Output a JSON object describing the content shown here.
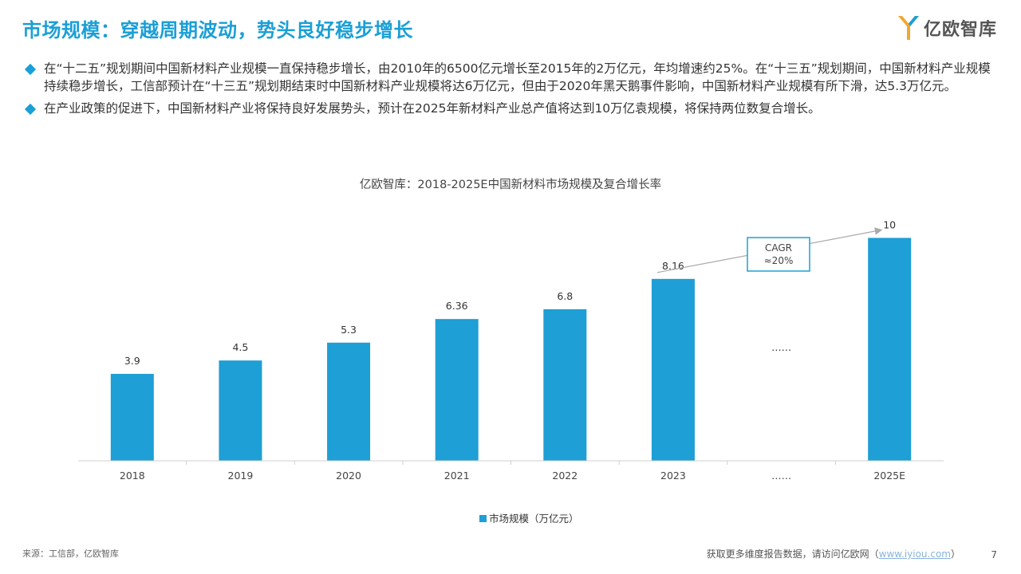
{
  "page": {
    "title": "市场规模：穿越周期波动，势头良好稳步增长",
    "logo_text": "亿欧智库",
    "bullets": [
      "在“十二五”规划期间中国新材料产业规模一直保持稳步增长，由2010年的6500亿元增长至2015年的2万亿元，年均增速约25%。在“十三五”规划期间，中国新材料产业规模持续稳步增长，工信部预计在“十三五”规划期结束时中国新材料产业规模将达6万亿元，但由于2020年黑天鹅事件影响，中国新材料产业规模有所下滑，达5.3万亿元。",
      "在产业政策的促进下，中国新材料产业将保持良好发展势头，预计在2025年新材料产业总产值将达到10万亿袁规模，将保持两位数复合增长。"
    ],
    "source": "来源：工信部，亿欧智库",
    "footer_text": "获取更多维度报告数据，请访问亿欧网（",
    "footer_link": "www.iyiou.com",
    "footer_close": "）",
    "page_number": "7"
  },
  "colors": {
    "accent": "#1a9fd6",
    "bar": "#1e9fd5"
  },
  "chart_data": {
    "type": "bar",
    "title": "亿欧智库：2018-2025E中国新材料市场规模及复合增长率",
    "categories": [
      "2018",
      "2019",
      "2020",
      "2021",
      "2022",
      "2023",
      "……",
      "2025E"
    ],
    "series": [
      {
        "name": "市场规模（万亿元）",
        "values": [
          3.9,
          4.5,
          5.3,
          6.36,
          6.8,
          8.16,
          null,
          10
        ]
      }
    ],
    "value_labels": [
      "3.9",
      "4.5",
      "5.3",
      "6.36",
      "6.8",
      "8.16",
      "……",
      "10"
    ],
    "annotation": {
      "line1": "CAGR",
      "line2": "≈20%"
    },
    "ylim": [
      0,
      10.3
    ],
    "legend_position": "bottom-center",
    "grid": false
  }
}
